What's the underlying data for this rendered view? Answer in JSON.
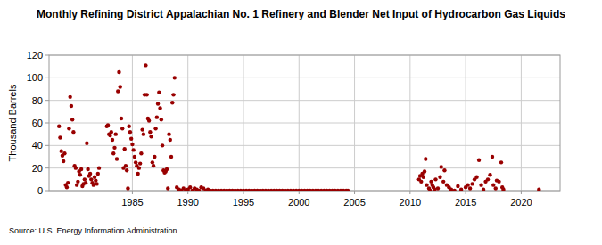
{
  "chart_data": {
    "type": "scatter",
    "title": "Monthly Refining District Appalachian No. 1 Refinery and Blender Net Input of Hydrocarbon Gas Liquids",
    "y_label": "Thousand Barrels",
    "source": "Source: U.S. Energy Information Administration",
    "color": "#990000",
    "marker": "circle",
    "grid": true,
    "xlim": [
      1977.5,
      2023.5
    ],
    "xticks": [
      1985,
      1990,
      1995,
      2000,
      2005,
      2010,
      2015,
      2020
    ],
    "ylim": [
      0,
      120
    ],
    "yticks": [
      0,
      20,
      40,
      60,
      80,
      100,
      120
    ],
    "x": [
      1978.4,
      1978.5,
      1978.6,
      1978.7,
      1978.8,
      1978.9,
      1979.0,
      1979.1,
      1979.2,
      1979.3,
      1979.4,
      1979.5,
      1979.6,
      1979.7,
      1979.8,
      1979.9,
      1980.0,
      1980.1,
      1980.2,
      1980.3,
      1980.4,
      1980.5,
      1980.6,
      1980.7,
      1980.8,
      1980.9,
      1981.0,
      1981.1,
      1981.2,
      1981.3,
      1981.4,
      1981.5,
      1981.6,
      1981.7,
      1981.8,
      1981.9,
      1982.0,
      1982.7,
      1982.8,
      1982.9,
      1983.0,
      1983.1,
      1983.2,
      1983.3,
      1983.4,
      1983.5,
      1983.6,
      1983.7,
      1983.8,
      1983.9,
      1984.0,
      1984.1,
      1984.2,
      1984.3,
      1984.4,
      1984.5,
      1984.6,
      1984.7,
      1984.8,
      1984.9,
      1985.0,
      1985.1,
      1985.2,
      1985.3,
      1985.4,
      1985.5,
      1985.6,
      1985.7,
      1985.8,
      1985.9,
      1986.0,
      1986.1,
      1986.2,
      1986.3,
      1986.4,
      1986.5,
      1986.6,
      1986.7,
      1986.8,
      1986.9,
      1987.0,
      1987.1,
      1987.2,
      1987.3,
      1987.4,
      1987.5,
      1987.6,
      1987.7,
      1987.8,
      1987.9,
      1988.0,
      1988.1,
      1988.2,
      1988.3,
      1988.4,
      1988.5,
      1988.6,
      1988.7,
      1988.8,
      1989.0,
      1989.2,
      1989.4,
      1989.6,
      1989.8,
      1990.0,
      1990.2,
      1990.4,
      1990.6,
      1990.8,
      1991.0,
      1991.2,
      1991.4,
      1991.6,
      1991.8,
      1992.0,
      1992.25,
      1992.5,
      1992.75,
      1993.0,
      1993.25,
      1993.5,
      1993.75,
      1994.0,
      1994.25,
      1994.5,
      1994.75,
      1995.0,
      1995.25,
      1995.5,
      1995.75,
      1996.0,
      1996.25,
      1996.5,
      1996.75,
      1997.0,
      1997.25,
      1997.5,
      1997.75,
      1998.0,
      1998.25,
      1998.5,
      1998.75,
      1999.0,
      1999.25,
      1999.5,
      1999.75,
      2000.0,
      2000.25,
      2000.5,
      2000.75,
      2001.0,
      2001.25,
      2001.5,
      2001.75,
      2002.0,
      2002.25,
      2002.5,
      2002.75,
      2003.0,
      2003.25,
      2003.5,
      2003.75,
      2004.0,
      2004.25,
      2004.4,
      2010.8,
      2010.9,
      2011.0,
      2011.1,
      2011.2,
      2011.3,
      2011.4,
      2011.5,
      2011.7,
      2011.8,
      2011.9,
      2012.0,
      2012.1,
      2012.2,
      2012.3,
      2012.5,
      2012.7,
      2012.8,
      2013.0,
      2013.1,
      2013.3,
      2013.5,
      2013.7,
      2014.0,
      2014.3,
      2014.6,
      2015.0,
      2015.2,
      2015.4,
      2015.6,
      2015.8,
      2016.0,
      2016.2,
      2016.4,
      2016.6,
      2016.8,
      2017.0,
      2017.2,
      2017.4,
      2017.5,
      2017.7,
      2017.8,
      2018.0,
      2018.2,
      2018.3,
      2018.4,
      2021.6
    ],
    "values": [
      57,
      47,
      35,
      31,
      26,
      33,
      5,
      3,
      7,
      55,
      83,
      75,
      63,
      52,
      22,
      20,
      5,
      8,
      17,
      14,
      19,
      4,
      6,
      10,
      7,
      42,
      19,
      13,
      15,
      10,
      7,
      5,
      12,
      9,
      6,
      15,
      20,
      57,
      58,
      50,
      49,
      52,
      45,
      33,
      38,
      50,
      28,
      88,
      105,
      92,
      64,
      55,
      20,
      37,
      22,
      18,
      2,
      57,
      52,
      46,
      41,
      36,
      30,
      25,
      22,
      15,
      20,
      24,
      33,
      54,
      50,
      85,
      111,
      85,
      64,
      62,
      52,
      48,
      25,
      22,
      30,
      55,
      65,
      77,
      87,
      73,
      63,
      40,
      18,
      16,
      17,
      19,
      2,
      50,
      45,
      30,
      78,
      85,
      100,
      3,
      1,
      0,
      2,
      0,
      1,
      3,
      0,
      2,
      1,
      0,
      3,
      2,
      0,
      1,
      0,
      0,
      0,
      0,
      0,
      0,
      0,
      0,
      0,
      0,
      0,
      0,
      0,
      0,
      0,
      0,
      0,
      0,
      0,
      0,
      0,
      0,
      0,
      0,
      0,
      0,
      0,
      0,
      0,
      0,
      0,
      0,
      0,
      0,
      0,
      0,
      0,
      0,
      0,
      0,
      0,
      0,
      0,
      0,
      0,
      0,
      0,
      0,
      0,
      0,
      0,
      10,
      13,
      8,
      15,
      12,
      17,
      28,
      5,
      2,
      0,
      8,
      5,
      3,
      1,
      10,
      2,
      12,
      21,
      8,
      18,
      5,
      3,
      1,
      0,
      4,
      1,
      3,
      5,
      2,
      6,
      10,
      12,
      27,
      5,
      1,
      8,
      10,
      14,
      30,
      5,
      2,
      9,
      8,
      25,
      3,
      1,
      1
    ]
  }
}
